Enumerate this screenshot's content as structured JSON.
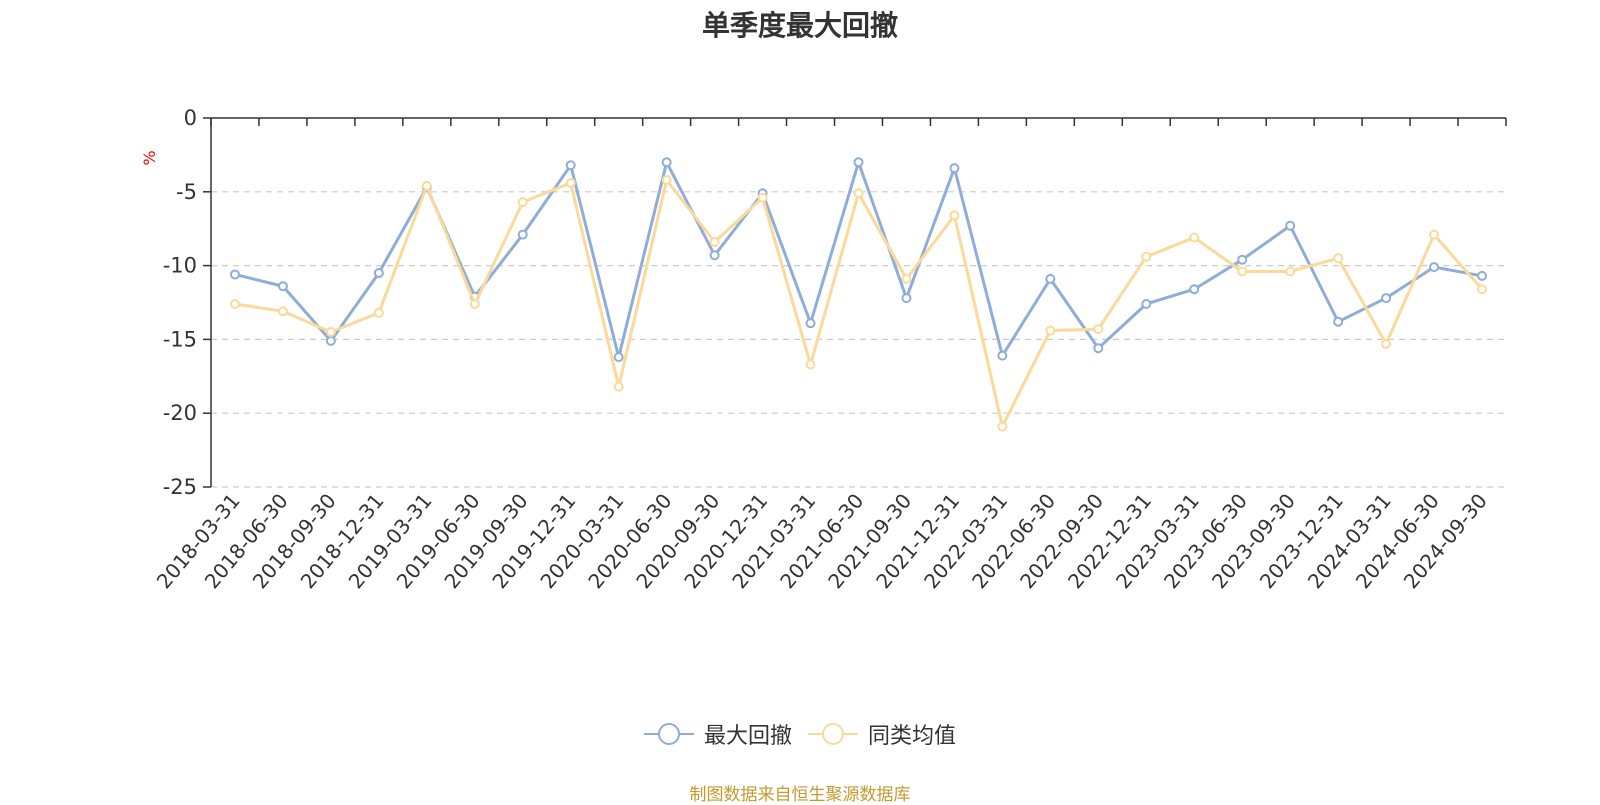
{
  "colors": {
    "series_1": "#8eadd9",
    "series_2": "#fbd999",
    "unit": "#ff0000",
    "source": "#c49a2e",
    "grid": "#cccccc",
    "axis": "#333333"
  },
  "chart_data": {
    "type": "line",
    "title": "单季度最大回撤",
    "ylabel": "%",
    "xlabel": "",
    "ylim": [
      -25,
      0
    ],
    "yticks": [
      0,
      -5,
      -10,
      -15,
      -20,
      -25
    ],
    "categories": [
      "2018-03-31",
      "2018-06-30",
      "2018-09-30",
      "2018-12-31",
      "2019-03-31",
      "2019-06-30",
      "2019-09-30",
      "2019-12-31",
      "2020-03-31",
      "2020-06-30",
      "2020-09-30",
      "2020-12-31",
      "2021-03-31",
      "2021-06-30",
      "2021-09-30",
      "2021-12-31",
      "2022-03-31",
      "2022-06-30",
      "2022-09-30",
      "2022-12-31",
      "2023-03-31",
      "2023-06-30",
      "2023-09-30",
      "2023-12-31",
      "2024-03-31",
      "2024-06-30",
      "2024-09-30"
    ],
    "series": [
      {
        "name": "最大回撤",
        "values": [
          -10.6,
          -11.4,
          -15.1,
          -10.5,
          -4.7,
          -12.1,
          -7.9,
          -3.2,
          -16.2,
          -3.0,
          -9.3,
          -5.1,
          -13.9,
          -3.0,
          -12.2,
          -3.4,
          -16.1,
          -10.9,
          -15.6,
          -12.6,
          -11.6,
          -9.6,
          -7.3,
          -13.8,
          -12.2,
          -10.1,
          -10.7
        ]
      },
      {
        "name": "同类均值",
        "values": [
          -12.6,
          -13.1,
          -14.5,
          -13.2,
          -4.6,
          -12.6,
          -5.7,
          -4.4,
          -18.2,
          -4.2,
          -8.4,
          -5.4,
          -16.7,
          -5.1,
          -10.9,
          -6.6,
          -20.9,
          -14.4,
          -14.3,
          -9.4,
          -8.1,
          -10.4,
          -10.4,
          -9.5,
          -15.3,
          -7.9,
          -11.6
        ]
      }
    ]
  },
  "legend": [
    "最大回撤",
    "同类均值"
  ],
  "source": "制图数据来自恒生聚源数据库"
}
